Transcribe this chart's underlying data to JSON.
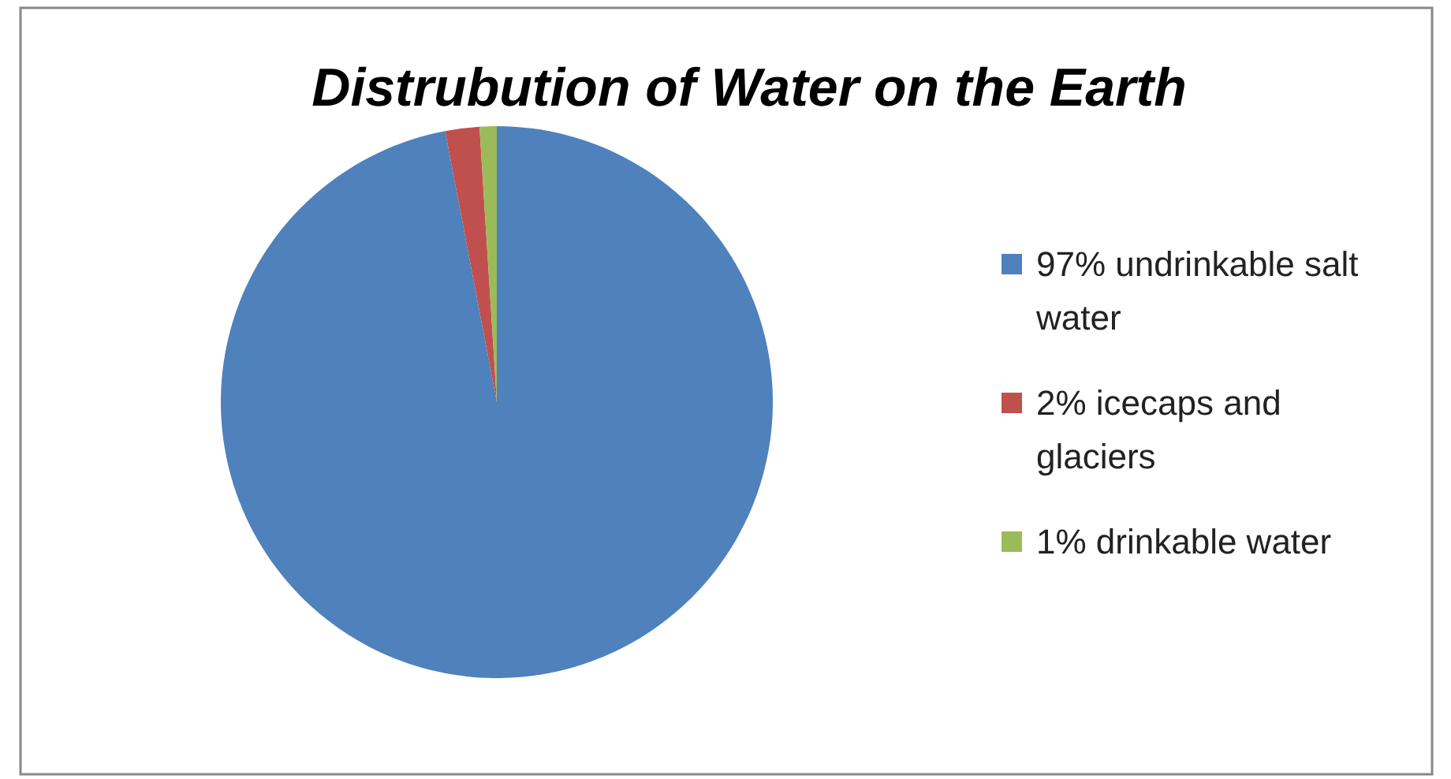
{
  "chart_data": {
    "type": "pie",
    "title": "Distrubution of Water on the Earth",
    "categories": [
      "97% undrinkable salt water",
      "2% icecaps and glaciers",
      "1% drinkable water"
    ],
    "values": [
      97,
      2,
      1
    ],
    "colors": [
      "#4f81bd",
      "#c0504d",
      "#9bbb59"
    ],
    "legend": "right"
  }
}
